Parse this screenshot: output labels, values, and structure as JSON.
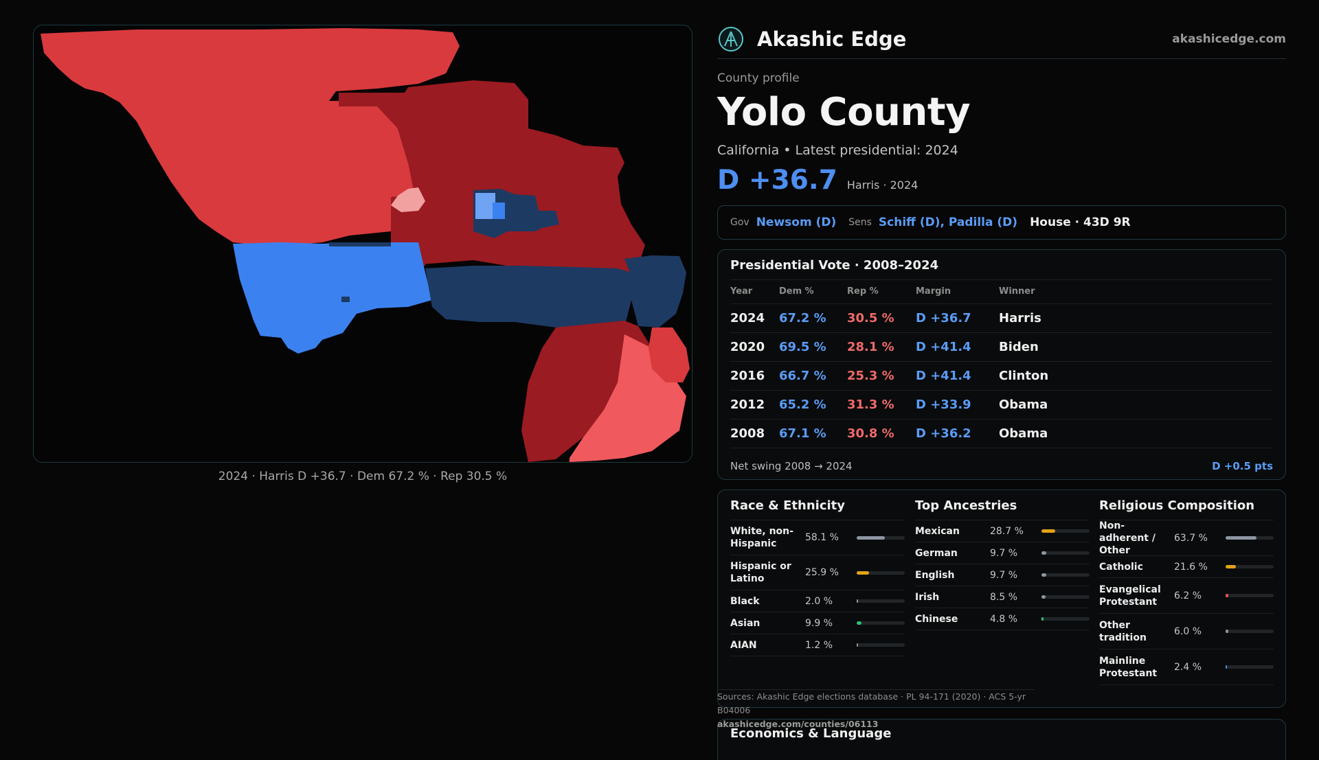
{
  "brand": {
    "name": "Akashic Edge",
    "url": "akashicedge.com"
  },
  "header": {
    "kicker": "County profile",
    "title": "Yolo County",
    "subtitle": "California • Latest presidential: 2024",
    "margin": "D +36.7",
    "margin_who": "Harris · 2024"
  },
  "officials": {
    "gov_key": "Gov",
    "gov_val": "Newsom (D)",
    "sens_key": "Sens",
    "sens_val": "Schiff (D), Padilla (D)",
    "house": "House · 43D 9R"
  },
  "map": {
    "caption": "2024 · Harris D +36.7 · Dem 67.2 % · Rep 30.5 %",
    "colors": {
      "safe_d": "#1d3a63",
      "likely_d": "#3b82f0",
      "lean_d": "#6fa4f4",
      "safe_r": "#9a1b21",
      "likely_r": "#d93a3e",
      "lean_r": "#f0595d",
      "tilt_r": "#f2a1a1"
    }
  },
  "presidential": {
    "title": "Presidential Vote · 2008–2024",
    "columns": [
      "Year",
      "Dem %",
      "Rep %",
      "Margin",
      "Winner"
    ],
    "rows": [
      [
        "2024",
        "67.2 %",
        "30.5 %",
        "D +36.7",
        "Harris"
      ],
      [
        "2020",
        "69.5 %",
        "28.1 %",
        "D +41.4",
        "Biden"
      ],
      [
        "2016",
        "66.7 %",
        "25.3 %",
        "D +41.4",
        "Clinton"
      ],
      [
        "2012",
        "65.2 %",
        "31.3 %",
        "D +33.9",
        "Obama"
      ],
      [
        "2008",
        "67.1 %",
        "30.8 %",
        "D +36.2",
        "Obama"
      ]
    ],
    "swing_label": "Net swing 2008 → 2024",
    "swing_value": "D +0.5 pts"
  },
  "race": {
    "title": "Race & Ethnicity",
    "rows": [
      {
        "label": "White, non-Hispanic",
        "value": "58.1 %",
        "pct": 58.1,
        "color": "#8e96a3"
      },
      {
        "label": "Hispanic or Latino",
        "value": "25.9 %",
        "pct": 25.9,
        "color": "#e3a21a"
      },
      {
        "label": "Black",
        "value": "2.0 %",
        "pct": 2.0,
        "color": "#8e96a3"
      },
      {
        "label": "Asian",
        "value": "9.9 %",
        "pct": 9.9,
        "color": "#2fbf71"
      },
      {
        "label": "AIAN",
        "value": "1.2 %",
        "pct": 1.2,
        "color": "#8e96a3"
      }
    ]
  },
  "ancestry": {
    "title": "Top Ancestries",
    "rows": [
      {
        "label": "Mexican",
        "value": "28.7 %",
        "pct": 28.7,
        "color": "#e3a21a"
      },
      {
        "label": "German",
        "value": "9.7 %",
        "pct": 9.7,
        "color": "#8e96a3"
      },
      {
        "label": "English",
        "value": "9.7 %",
        "pct": 9.7,
        "color": "#8e96a3"
      },
      {
        "label": "Irish",
        "value": "8.5 %",
        "pct": 8.5,
        "color": "#8e96a3"
      },
      {
        "label": "Chinese",
        "value": "4.8 %",
        "pct": 4.8,
        "color": "#2fbf71"
      }
    ]
  },
  "religion": {
    "title": "Religious Composition",
    "rows": [
      {
        "label": "Non-adherent / Other",
        "value": "63.7 %",
        "pct": 63.7,
        "color": "#8e96a3"
      },
      {
        "label": "Catholic",
        "value": "21.6 %",
        "pct": 21.6,
        "color": "#e3a21a"
      },
      {
        "label": "Evangelical Protestant",
        "value": "6.2 %",
        "pct": 6.2,
        "color": "#e05a5a"
      },
      {
        "label": "Other tradition",
        "value": "6.0 %",
        "pct": 6.0,
        "color": "#8e96a3"
      },
      {
        "label": "Mainline Protestant",
        "value": "2.4 %",
        "pct": 2.4,
        "color": "#4e8ef0"
      }
    ]
  },
  "sources": {
    "line": "Sources: Akashic Edge elections database · PL 94-171 (2020) · ACS 5-yr B04006",
    "url": "akashicedge.com/counties/06113"
  },
  "economics": {
    "title": "Economics & Language"
  }
}
